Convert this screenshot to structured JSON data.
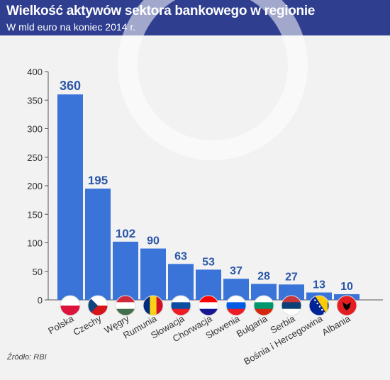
{
  "header": {
    "title": "Wielkość aktywów sektora bankowego w regionie",
    "subtitle": "W mld euro na koniec 2014 r."
  },
  "source": "Źródło: RBI",
  "colors": {
    "header_bg": "#2f3e8f",
    "bar": "#3a74d8",
    "value_label": "#2b56a8",
    "background": "#f2f2f2"
  },
  "chart_data": {
    "type": "bar",
    "categories": [
      "Polska",
      "Czechy",
      "Węgry",
      "Rumunia",
      "Słowacja",
      "Chorwacja",
      "Słowenia",
      "Bułgaria",
      "Serbia",
      "Bośnia i Hercegowina",
      "Albania"
    ],
    "values": [
      360,
      195,
      102,
      90,
      63,
      53,
      37,
      28,
      27,
      13,
      10
    ],
    "flags": [
      "poland-flag-icon",
      "czechia-flag-icon",
      "hungary-flag-icon",
      "romania-flag-icon",
      "slovakia-flag-icon",
      "croatia-flag-icon",
      "slovenia-flag-icon",
      "bulgaria-flag-icon",
      "serbia-flag-icon",
      "bosnia-flag-icon",
      "albania-flag-icon"
    ],
    "ylim": [
      0,
      400
    ],
    "yticks": [
      0,
      50,
      100,
      150,
      200,
      250,
      300,
      350,
      400
    ],
    "grid": false,
    "legend": "none"
  }
}
